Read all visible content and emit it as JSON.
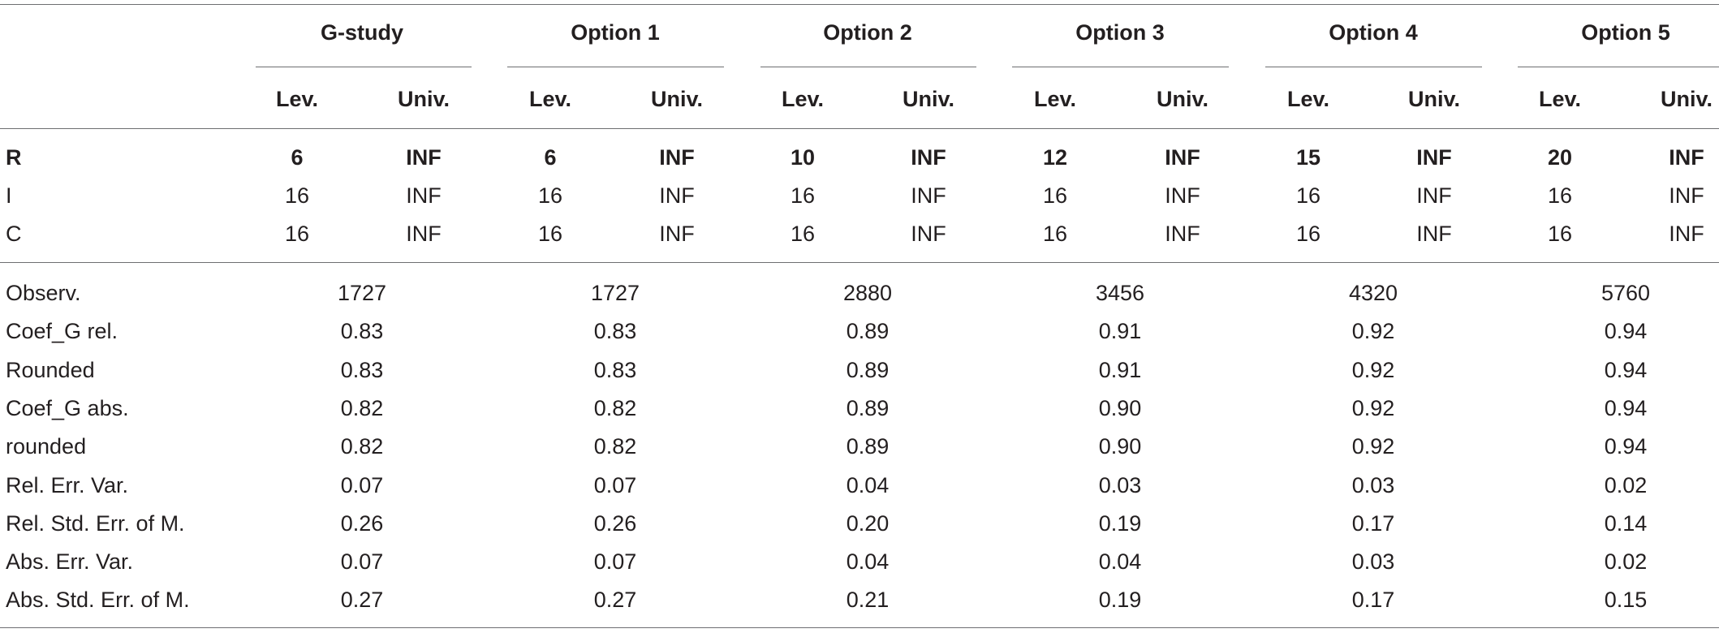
{
  "groups": [
    "G-study",
    "Option 1",
    "Option 2",
    "Option 3",
    "Option 4",
    "Option 5"
  ],
  "sublabels": {
    "lev": "Lev.",
    "univ": "Univ."
  },
  "facets": [
    {
      "label": "R",
      "bold": true,
      "values": [
        [
          "6",
          "INF"
        ],
        [
          "6",
          "INF"
        ],
        [
          "10",
          "INF"
        ],
        [
          "12",
          "INF"
        ],
        [
          "15",
          "INF"
        ],
        [
          "20",
          "INF"
        ]
      ]
    },
    {
      "label": "I",
      "bold": false,
      "values": [
        [
          "16",
          "INF"
        ],
        [
          "16",
          "INF"
        ],
        [
          "16",
          "INF"
        ],
        [
          "16",
          "INF"
        ],
        [
          "16",
          "INF"
        ],
        [
          "16",
          "INF"
        ]
      ]
    },
    {
      "label": "C",
      "bold": false,
      "values": [
        [
          "16",
          "INF"
        ],
        [
          "16",
          "INF"
        ],
        [
          "16",
          "INF"
        ],
        [
          "16",
          "INF"
        ],
        [
          "16",
          "INF"
        ],
        [
          "16",
          "INF"
        ]
      ]
    }
  ],
  "stats": [
    {
      "label": "Observ.",
      "values": [
        "1727",
        "1727",
        "2880",
        "3456",
        "4320",
        "5760"
      ]
    },
    {
      "label": "Coef_G rel.",
      "values": [
        "0.83",
        "0.83",
        "0.89",
        "0.91",
        "0.92",
        "0.94"
      ]
    },
    {
      "label": "Rounded",
      "values": [
        "0.83",
        "0.83",
        "0.89",
        "0.91",
        "0.92",
        "0.94"
      ]
    },
    {
      "label": "Coef_G abs.",
      "values": [
        "0.82",
        "0.82",
        "0.89",
        "0.90",
        "0.92",
        "0.94"
      ]
    },
    {
      "label": "rounded",
      "values": [
        "0.82",
        "0.82",
        "0.89",
        "0.90",
        "0.92",
        "0.94"
      ]
    },
    {
      "label": "Rel. Err. Var.",
      "values": [
        "0.07",
        "0.07",
        "0.04",
        "0.03",
        "0.03",
        "0.02"
      ]
    },
    {
      "label": "Rel. Std. Err. of M.",
      "values": [
        "0.26",
        "0.26",
        "0.20",
        "0.19",
        "0.17",
        "0.14"
      ]
    },
    {
      "label": "Abs. Err. Var.",
      "values": [
        "0.07",
        "0.07",
        "0.04",
        "0.04",
        "0.03",
        "0.02"
      ]
    },
    {
      "label": "Abs. Std. Err. of M.",
      "values": [
        "0.27",
        "0.27",
        "0.21",
        "0.19",
        "0.17",
        "0.15"
      ]
    }
  ]
}
